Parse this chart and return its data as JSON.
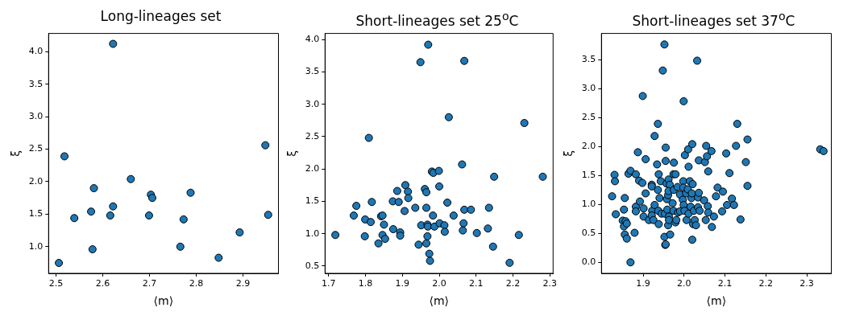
{
  "chart_data": [
    {
      "type": "scatter",
      "title": "Long-lineages set",
      "xlabel": "⟨m⟩",
      "ylabel": "ξ",
      "color": "#1f77b4",
      "marker": "circle",
      "grid": false,
      "x": [
        2.506,
        2.518,
        2.539,
        2.575,
        2.578,
        2.581,
        2.616,
        2.622,
        2.622,
        2.66,
        2.699,
        2.703,
        2.706,
        2.766,
        2.773,
        2.788,
        2.848,
        2.893,
        2.948,
        2.954
      ],
      "values": [
        0.75,
        2.39,
        1.44,
        1.54,
        0.96,
        1.9,
        1.48,
        1.62,
        4.12,
        2.04,
        1.48,
        1.8,
        1.75,
        1.0,
        1.42,
        1.83,
        0.83,
        1.22,
        2.56,
        1.49
      ],
      "xlim": [
        2.484,
        2.976
      ],
      "ylim": [
        0.59,
        4.28
      ],
      "xticks": [
        2.5,
        2.6,
        2.7,
        2.8,
        2.9
      ],
      "yticks": [
        {
          "value": 1,
          "label": "1.0"
        },
        1.5,
        {
          "value": 2,
          "label": "2.0"
        },
        2.5,
        {
          "value": 3,
          "label": "3.0"
        },
        3.5,
        {
          "value": 4,
          "label": "4.0"
        }
      ]
    },
    {
      "type": "scatter",
      "title": "Short-lineages set 25$^{o}$C",
      "xlabel": "⟨m⟩",
      "ylabel": "ξ",
      "color": "#1f77b4",
      "marker": "circle",
      "grid": false,
      "x": [
        1.718,
        1.768,
        1.775,
        1.799,
        1.798,
        1.809,
        1.814,
        1.817,
        1.835,
        1.842,
        1.846,
        1.846,
        1.85,
        1.853,
        1.875,
        1.874,
        1.886,
        1.89,
        1.894,
        1.894,
        1.906,
        1.908,
        1.915,
        1.916,
        1.935,
        1.944,
        1.949,
        1.951,
        1.961,
        1.965,
        1.965,
        1.965,
        1.968,
        1.968,
        1.969,
        1.97,
        1.973,
        1.975,
        1.98,
        1.984,
        1.983,
        1.987,
        1.999,
        2.0,
        2.001,
        2.014,
        2.015,
        2.022,
        2.026,
        2.039,
        2.062,
        2.064,
        2.066,
        2.068,
        2.068,
        2.086,
        2.102,
        2.132,
        2.135,
        2.146,
        2.149,
        2.191,
        2.216,
        2.231,
        2.281
      ],
      "values": [
        0.98,
        1.28,
        1.43,
        1.22,
        0.96,
        2.48,
        1.18,
        1.49,
        0.85,
        1.27,
        1.28,
        0.98,
        1.14,
        0.92,
        1.07,
        1.5,
        1.66,
        1.49,
        1.02,
        0.97,
        1.35,
        1.75,
        1.65,
        1.55,
        1.4,
        0.83,
        3.65,
        1.13,
        1.69,
        1.64,
        1.4,
        0.85,
        1.14,
        0.96,
        1.11,
        3.92,
        0.69,
        0.58,
        1.96,
        1.94,
        1.28,
        1.11,
        1.97,
        1.73,
        1.16,
        1.13,
        1.03,
        1.48,
        2.8,
        1.28,
        2.07,
        1.05,
        1.16,
        1.37,
        3.67,
        1.37,
        1.01,
        1.08,
        1.4,
        0.8,
        1.88,
        0.55,
        0.98,
        2.71,
        1.88
      ],
      "xlim": [
        1.69,
        2.309
      ],
      "ylim": [
        0.387,
        4.094
      ],
      "xticks": [
        1.7,
        1.8,
        1.9,
        {
          "value": 2,
          "label": "2.0"
        },
        2.1,
        2.2,
        2.3
      ],
      "yticks": [
        0.5,
        {
          "value": 1,
          "label": "1.0"
        },
        1.5,
        {
          "value": 2,
          "label": "2.0"
        },
        2.5,
        {
          "value": 3,
          "label": "3.0"
        },
        3.5,
        {
          "value": 4,
          "label": "4.0"
        }
      ]
    },
    {
      "type": "scatter",
      "title": "Short-lineages set 37$^{o}$C",
      "xlabel": "⟨m⟩",
      "ylabel": "ξ",
      "color": "#1f77b4",
      "marker": "circle",
      "grid": false,
      "x": [
        1.824,
        1.83,
        1.831,
        1.833,
        1.85,
        1.853,
        1.855,
        1.853,
        1.857,
        1.855,
        1.86,
        1.86,
        1.864,
        1.869,
        1.869,
        1.879,
        1.882,
        1.882,
        1.882,
        1.887,
        1.89,
        1.892,
        1.899,
        1.898,
        1.901,
        1.901,
        1.906,
        1.906,
        1.914,
        1.921,
        1.921,
        1.922,
        1.921,
        1.925,
        1.928,
        1.928,
        1.934,
        1.936,
        1.936,
        1.937,
        1.938,
        1.938,
        1.94,
        1.943,
        1.945,
        1.948,
        1.952,
        1.953,
        1.954,
        1.955,
        1.955,
        1.955,
        1.957,
        1.958,
        1.952,
        1.959,
        1.961,
        1.962,
        1.963,
        1.965,
        1.962,
        1.961,
        1.963,
        1.966,
        1.972,
        1.974,
        1.975,
        1.975,
        1.974,
        1.979,
        1.979,
        1.981,
        1.984,
        1.985,
        1.99,
        1.99,
        1.997,
        1.998,
        1.999,
        1.998,
        1.999,
        2.001,
        2.002,
        2.005,
        2.006,
        2.009,
        2.01,
        2.011,
        2.011,
        2.014,
        2.016,
        2.018,
        2.019,
        2.02,
        2.02,
        2.021,
        2.022,
        2.024,
        2.026,
        2.029,
        2.032,
        2.034,
        2.034,
        2.036,
        2.036,
        2.038,
        2.049,
        2.051,
        2.053,
        2.054,
        2.056,
        2.058,
        2.059,
        2.059,
        2.067,
        2.068,
        2.073,
        2.078,
        2.082,
        2.093,
        2.095,
        2.103,
        2.105,
        2.111,
        2.117,
        2.122,
        2.127,
        2.13,
        2.138,
        2.151,
        2.155,
        2.155,
        2.333,
        2.341
      ],
      "values": [
        1.14,
        1.51,
        1.4,
        0.83,
        0.72,
        0.91,
        1.11,
        0.62,
        0.71,
        0.48,
        0.41,
        0.67,
        1.53,
        1.58,
        0.0,
        0.51,
        0.96,
        0.88,
        1.52,
        1.9,
        1.41,
        1.05,
        2.87,
        1.37,
        0.93,
        0.79,
        1.19,
        1.78,
        0.73,
        1.34,
        1.31,
        0.89,
        0.81,
        0.73,
        0.99,
        2.18,
        1.69,
        2.39,
        1.25,
        0.89,
        1.52,
        0.66,
        1.11,
        1.4,
        0.84,
        3.31,
        0.44,
        0.84,
        0.3,
        0.31,
        1.75,
        1.98,
        1.36,
        1.09,
        3.76,
        0.91,
        1.16,
        1.43,
        0.79,
        1.34,
        1.23,
        0.64,
        0.73,
        0.48,
        1.02,
        0.89,
        1.25,
        1.72,
        1.52,
        1.52,
        0.69,
        0.73,
        1.3,
        0.86,
        0.88,
        1.17,
        1.08,
        1.4,
        2.78,
        1.29,
        0.99,
        0.89,
        1.85,
        1.19,
        0.73,
        1.26,
        1.95,
        1.65,
        0.84,
        1.4,
        0.96,
        1.11,
        1.19,
        2.04,
        0.39,
        1.35,
        0.66,
        0.89,
        0.73,
        0.64,
        3.48,
        0.95,
        1.12,
        1.2,
        1.76,
        0.89,
        1.07,
        1.73,
        0.73,
        2.01,
        1.83,
        0.97,
        1.57,
        0.86,
        1.92,
        0.61,
        0.79,
        1.14,
        1.29,
        0.88,
        1.22,
        1.88,
        0.99,
        1.54,
        1.1,
        0.99,
        2.01,
        2.39,
        0.74,
        1.73,
        2.12,
        1.32,
        1.95,
        1.92
      ],
      "xlim": [
        1.798,
        2.36
      ],
      "ylim": [
        -0.19,
        3.95
      ],
      "xticks": [
        1.9,
        {
          "value": 2,
          "label": "2.0"
        },
        2.1,
        2.2,
        2.3
      ],
      "yticks": [
        {
          "value": 0,
          "label": "0.0"
        },
        0.5,
        {
          "value": 1,
          "label": "1.0"
        },
        1.5,
        {
          "value": 2,
          "label": "2.0"
        },
        2.5,
        {
          "value": 3,
          "label": "3.0"
        },
        3.5
      ]
    }
  ]
}
